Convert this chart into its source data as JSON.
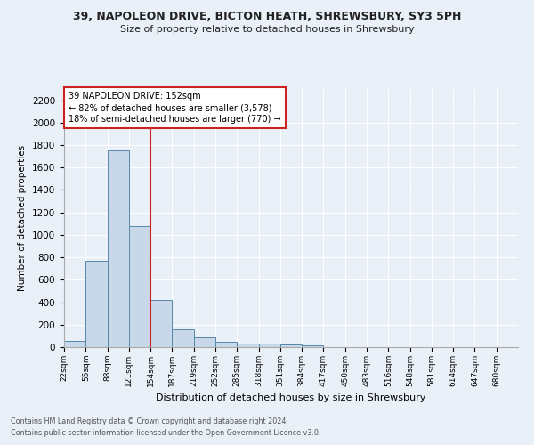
{
  "title": "39, NAPOLEON DRIVE, BICTON HEATH, SHREWSBURY, SY3 5PH",
  "subtitle": "Size of property relative to detached houses in Shrewsbury",
  "xlabel": "Distribution of detached houses by size in Shrewsbury",
  "ylabel": "Number of detached properties",
  "bin_labels": [
    "22sqm",
    "55sqm",
    "88sqm",
    "121sqm",
    "154sqm",
    "187sqm",
    "219sqm",
    "252sqm",
    "285sqm",
    "318sqm",
    "351sqm",
    "384sqm",
    "417sqm",
    "450sqm",
    "483sqm",
    "516sqm",
    "548sqm",
    "581sqm",
    "614sqm",
    "647sqm",
    "680sqm"
  ],
  "bar_values": [
    55,
    770,
    1750,
    1075,
    420,
    155,
    85,
    45,
    35,
    28,
    22,
    18,
    0,
    0,
    0,
    0,
    0,
    0,
    0,
    0,
    0
  ],
  "bar_color": "#c8d8e8",
  "bar_edge_color": "#5588aa",
  "red_line_x": 4,
  "red_line_color": "#cc2222",
  "annotation_text": "39 NAPOLEON DRIVE: 152sqm\n← 82% of detached houses are smaller (3,578)\n18% of semi-detached houses are larger (770) →",
  "annotation_box_color": "#ffffff",
  "annotation_box_edge": "#cc2222",
  "ylim": [
    0,
    2300
  ],
  "yticks": [
    0,
    200,
    400,
    600,
    800,
    1000,
    1200,
    1400,
    1600,
    1800,
    2000,
    2200
  ],
  "background_color": "#eaf0f8",
  "grid_color": "#ffffff",
  "footnote1": "Contains HM Land Registry data © Crown copyright and database right 2024.",
  "footnote2": "Contains public sector information licensed under the Open Government Licence v3.0."
}
